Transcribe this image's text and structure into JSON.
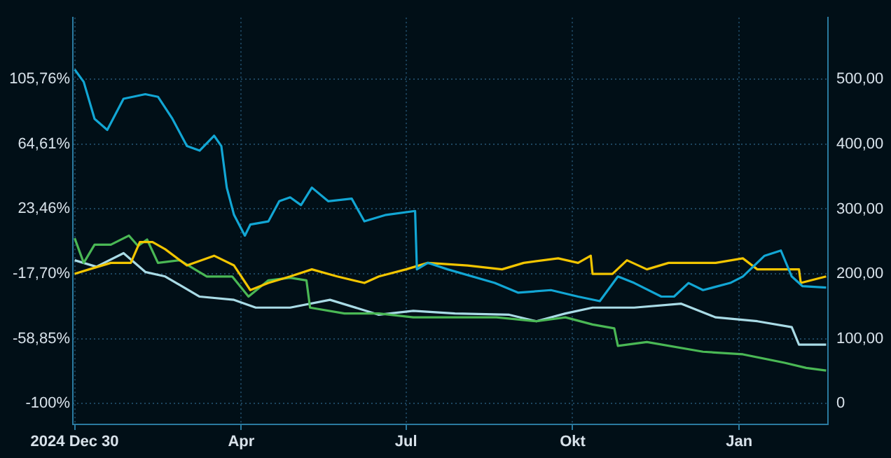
{
  "chart_data": {
    "type": "line",
    "grid": true,
    "legend": false,
    "marker": "none",
    "line_style": "solid",
    "xlim": [
      "2024-12-29",
      "2026-02-19"
    ],
    "xticks": [
      {
        "value": "2024-12-30",
        "label": "2024 Dec 30"
      },
      {
        "value": "2025-04-01",
        "label": "Apr"
      },
      {
        "value": "2025-07-01",
        "label": "Jul"
      },
      {
        "value": "2025-10-01",
        "label": "Okt"
      },
      {
        "value": "2026-01-01",
        "label": "Jan"
      }
    ],
    "ylim": [
      -113.2,
      144.8
    ],
    "yticks": [
      {
        "value": -100,
        "label": "-100%"
      },
      {
        "value": -58.85,
        "label": "-58,85%"
      },
      {
        "value": -17.7,
        "label": "-17,70%"
      },
      {
        "value": 23.46,
        "label": "23,46%"
      },
      {
        "value": 64.61,
        "label": "64,61%"
      },
      {
        "value": 105.76,
        "label": "105,76%"
      }
    ],
    "y2lim": [
      -32,
      595
    ],
    "y2ticks": [
      {
        "value": 0,
        "label": "0"
      },
      {
        "value": 100,
        "label": "100,00"
      },
      {
        "value": 200,
        "label": "200,00"
      },
      {
        "value": 300,
        "label": "300,00"
      },
      {
        "value": 400,
        "label": "400,00"
      },
      {
        "value": 500,
        "label": "500,00"
      }
    ],
    "series": [
      {
        "color": "#12a6d4",
        "axis": "y2",
        "x": [
          "2024-12-30",
          "2025-01-04",
          "2025-01-10",
          "2025-01-17",
          "2025-01-26",
          "2025-02-07",
          "2025-02-14",
          "2025-02-22",
          "2025-03-02",
          "2025-03-09",
          "2025-03-17",
          "2025-03-21",
          "2025-03-24",
          "2025-03-28",
          "2025-04-03",
          "2025-04-06",
          "2025-04-16",
          "2025-04-22",
          "2025-04-28",
          "2025-05-04",
          "2025-05-10",
          "2025-05-19",
          "2025-06-01",
          "2025-06-08",
          "2025-06-20",
          "2025-07-06",
          "2025-07-07",
          "2025-07-13",
          "2025-07-24",
          "2025-08-19",
          "2025-09-01",
          "2025-09-19",
          "2025-10-04",
          "2025-10-16",
          "2025-10-26",
          "2025-11-04",
          "2025-11-19",
          "2025-11-26",
          "2025-12-04",
          "2025-12-12",
          "2025-12-27",
          "2026-01-03",
          "2026-01-15",
          "2026-01-24",
          "2026-01-30",
          "2026-02-05",
          "2026-02-18"
        ],
        "values": [
          515,
          496,
          439,
          422,
          470,
          477,
          473,
          439,
          397,
          390,
          413,
          397,
          333,
          291,
          259,
          276,
          281,
          312,
          318,
          306,
          333,
          312,
          316,
          281,
          291,
          297,
          207,
          217,
          207,
          186,
          171,
          175,
          165,
          158,
          196,
          186,
          165,
          165,
          186,
          175,
          186,
          196,
          228,
          236,
          196,
          181,
          179
        ]
      },
      {
        "color": "#f2c500",
        "axis": "y2",
        "x": [
          "2024-12-30",
          "2025-01-07",
          "2025-01-19",
          "2025-01-30",
          "2025-02-04",
          "2025-02-11",
          "2025-02-18",
          "2025-03-02",
          "2025-03-17",
          "2025-03-28",
          "2025-04-06",
          "2025-04-16",
          "2025-04-28",
          "2025-05-10",
          "2025-05-24",
          "2025-06-08",
          "2025-06-16",
          "2025-07-01",
          "2025-07-13",
          "2025-08-04",
          "2025-08-23",
          "2025-09-04",
          "2025-09-23",
          "2025-10-04",
          "2025-10-11",
          "2025-10-12",
          "2025-10-23",
          "2025-10-31",
          "2025-11-11",
          "2025-11-23",
          "2025-12-19",
          "2026-01-03",
          "2026-01-11",
          "2026-02-03",
          "2026-02-04",
          "2026-02-18"
        ],
        "values": [
          200,
          207,
          217,
          217,
          249,
          249,
          238,
          213,
          228,
          213,
          175,
          186,
          196,
          207,
          196,
          186,
          196,
          207,
          217,
          213,
          207,
          217,
          224,
          217,
          228,
          200,
          200,
          221,
          207,
          217,
          217,
          224,
          207,
          207,
          186,
          196
        ]
      },
      {
        "color": "#4ab855",
        "axis": "y2",
        "x": [
          "2024-12-30",
          "2025-01-04",
          "2025-01-10",
          "2025-01-19",
          "2025-01-29",
          "2025-02-03",
          "2025-02-08",
          "2025-02-14",
          "2025-02-26",
          "2025-03-13",
          "2025-03-27",
          "2025-04-05",
          "2025-04-16",
          "2025-04-28",
          "2025-05-07",
          "2025-05-09",
          "2025-05-28",
          "2025-06-16",
          "2025-07-05",
          "2025-07-28",
          "2025-08-20",
          "2025-09-11",
          "2025-09-27",
          "2025-10-12",
          "2025-10-24",
          "2025-10-26",
          "2025-11-11",
          "2025-12-12",
          "2026-01-03",
          "2026-01-26",
          "2026-02-07",
          "2026-02-18"
        ],
        "values": [
          255,
          217,
          245,
          245,
          259,
          243,
          253,
          217,
          221,
          196,
          196,
          165,
          190,
          194,
          190,
          148,
          139,
          139,
          133,
          133,
          133,
          127,
          133,
          122,
          116,
          89,
          95,
          80,
          76,
          63,
          55,
          51
        ]
      },
      {
        "color": "#a9dbe6",
        "axis": "y2",
        "x": [
          "2024-12-30",
          "2025-01-11",
          "2025-01-26",
          "2025-02-07",
          "2025-02-18",
          "2025-03-09",
          "2025-03-28",
          "2025-04-09",
          "2025-04-28",
          "2025-05-20",
          "2025-06-16",
          "2025-07-05",
          "2025-07-28",
          "2025-08-27",
          "2025-09-11",
          "2025-09-27",
          "2025-10-12",
          "2025-11-04",
          "2025-11-30",
          "2025-12-19",
          "2026-01-11",
          "2026-01-30",
          "2026-02-03",
          "2026-02-18"
        ],
        "values": [
          221,
          211,
          232,
          203,
          196,
          165,
          160,
          148,
          148,
          160,
          137,
          143,
          139,
          137,
          127,
          139,
          148,
          148,
          154,
          133,
          127,
          118,
          91,
          91
        ]
      }
    ]
  }
}
